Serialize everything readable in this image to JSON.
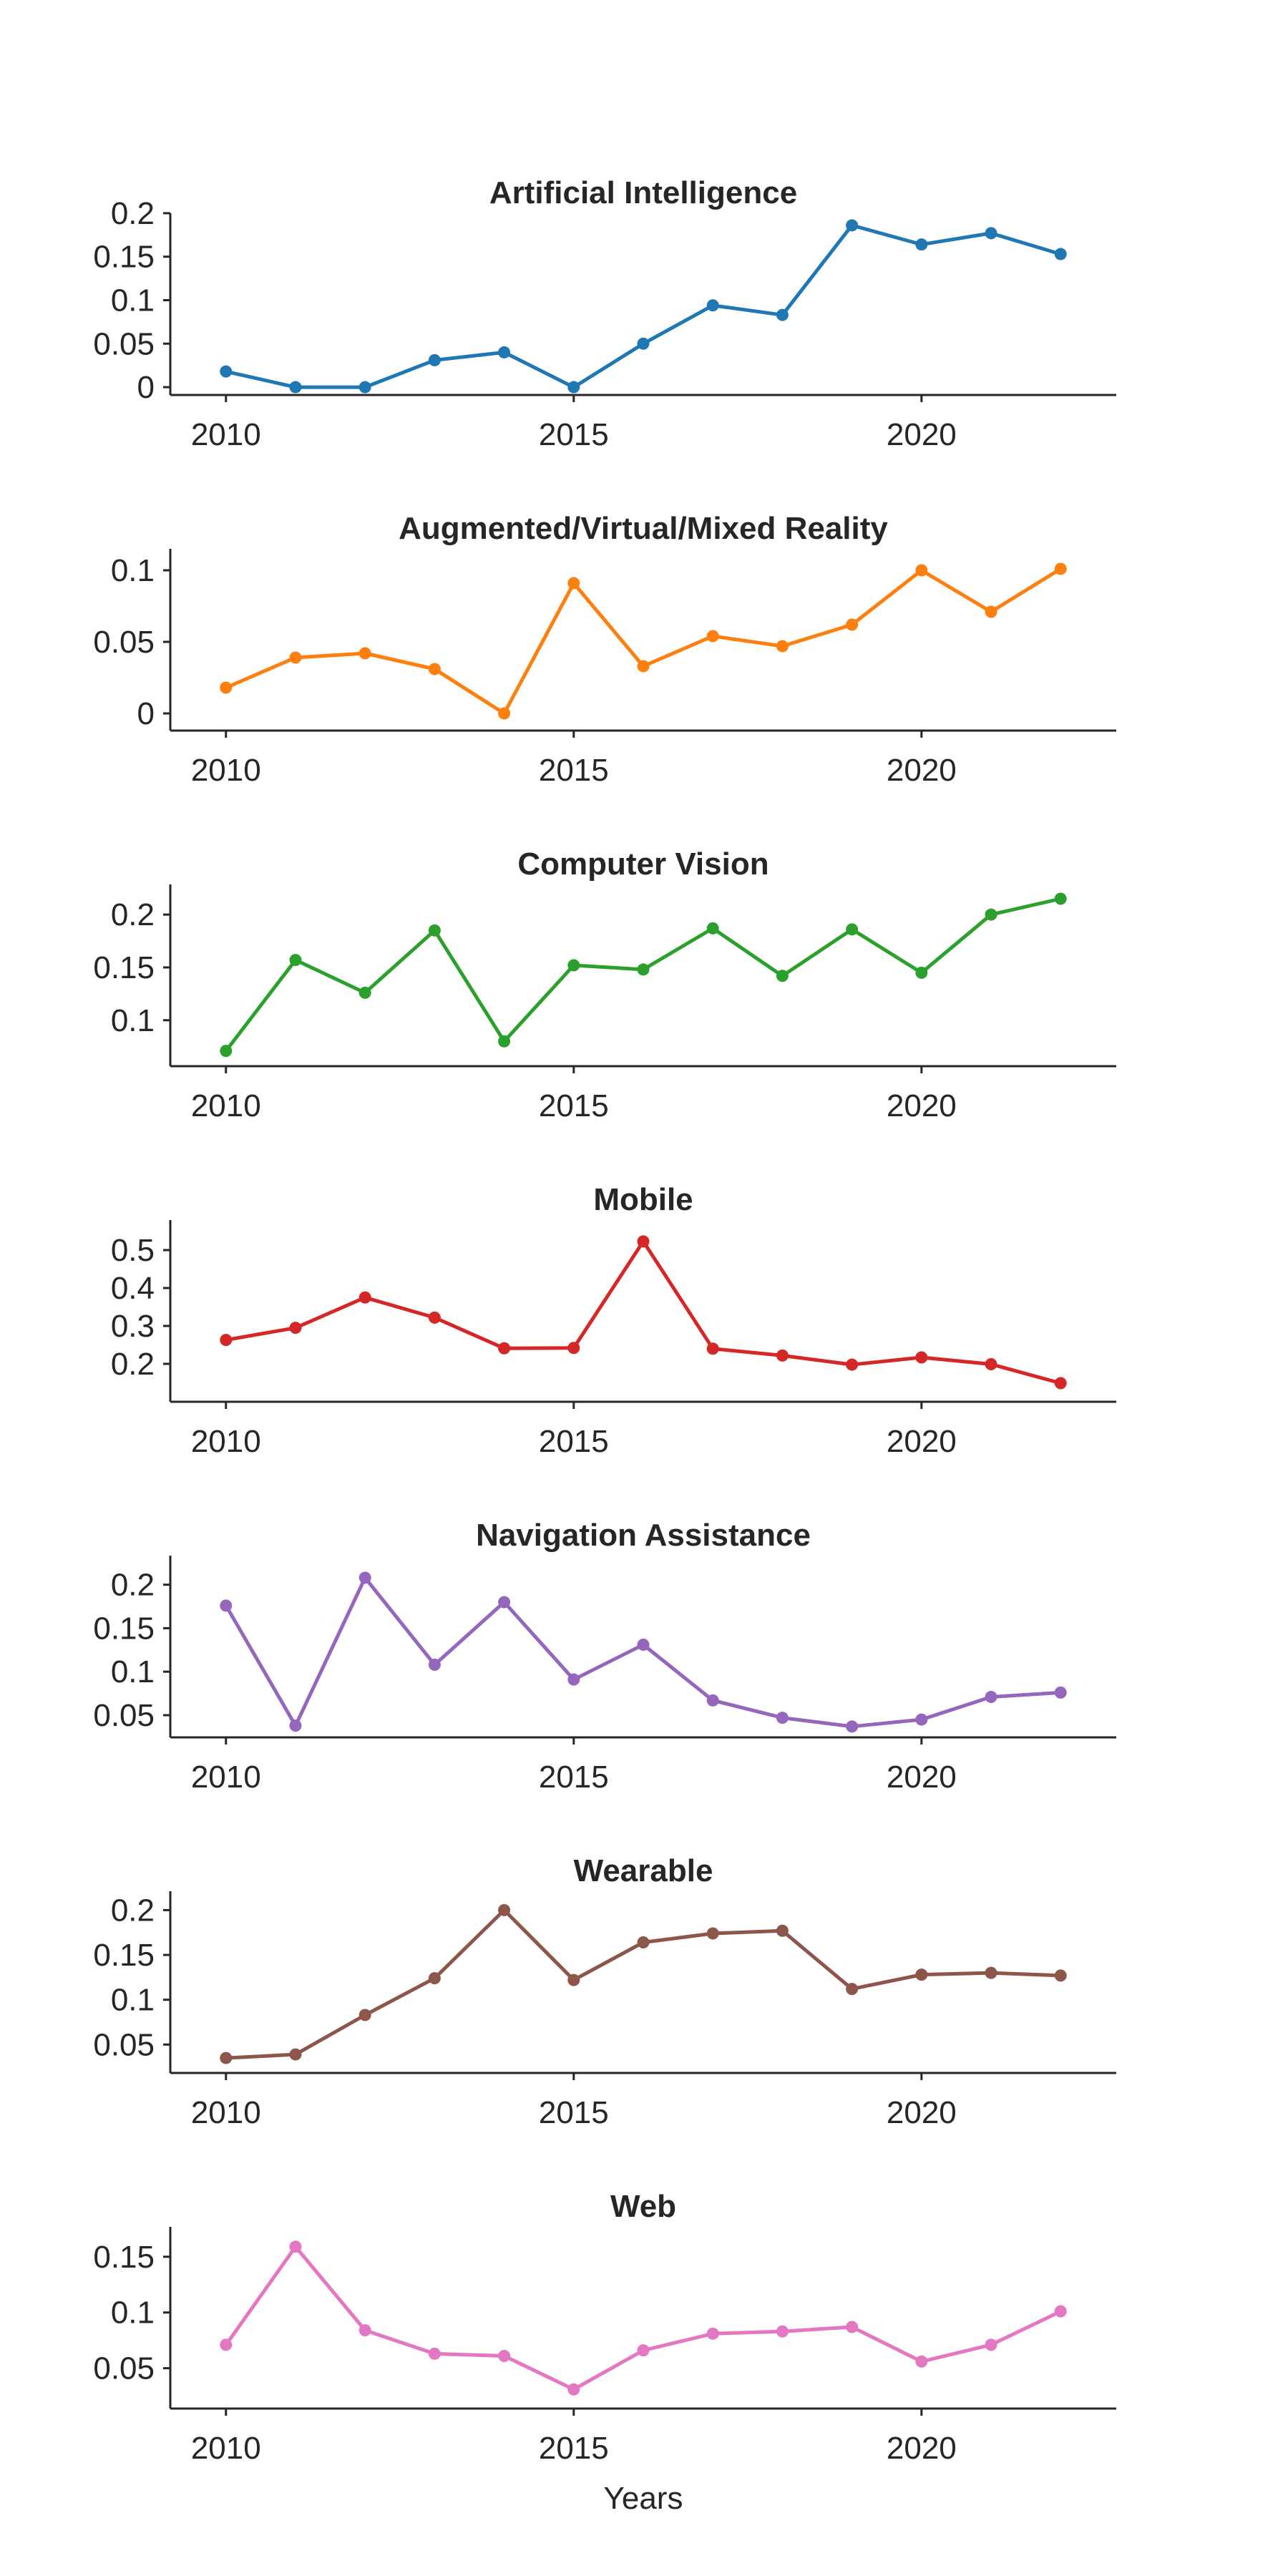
{
  "chart_data": [
    {
      "type": "line",
      "title": "Artificial Intelligence",
      "color": "#1f77b4",
      "x": [
        2010,
        2011,
        2012,
        2013,
        2014,
        2015,
        2016,
        2017,
        2018,
        2019,
        2020,
        2021,
        2022
      ],
      "values": [
        0.018,
        0.0,
        0.0,
        0.031,
        0.04,
        0.0,
        0.05,
        0.094,
        0.083,
        0.186,
        0.164,
        0.177,
        0.153
      ],
      "ylim": [
        -0.009,
        0.195
      ],
      "yticks": [
        0,
        0.05,
        0.1,
        0.15,
        0.2
      ],
      "ytick_labels": [
        "0",
        "0.05",
        "0.1",
        "0.15",
        "0.2"
      ],
      "xticks": [
        2010,
        2015,
        2020
      ],
      "xtick_labels": [
        "2010",
        "2015",
        "2020"
      ],
      "xlabel": ""
    },
    {
      "type": "line",
      "title": "Augmented/Virtual/Mixed Reality",
      "color": "#ff7f0e",
      "x": [
        2010,
        2011,
        2012,
        2013,
        2014,
        2015,
        2016,
        2017,
        2018,
        2019,
        2020,
        2021,
        2022
      ],
      "values": [
        0.018,
        0.039,
        0.042,
        0.031,
        0.0,
        0.091,
        0.033,
        0.054,
        0.047,
        0.062,
        0.1,
        0.071,
        0.101
      ],
      "ylim": [
        -0.012,
        0.112
      ],
      "yticks": [
        0,
        0.05,
        0.1
      ],
      "ytick_labels": [
        "0",
        "0.05",
        "0.1"
      ],
      "xticks": [
        2010,
        2015,
        2020
      ],
      "xtick_labels": [
        "2010",
        "2015",
        "2020"
      ],
      "xlabel": ""
    },
    {
      "type": "line",
      "title": "Computer Vision",
      "color": "#2ca02c",
      "x": [
        2010,
        2011,
        2012,
        2013,
        2014,
        2015,
        2016,
        2017,
        2018,
        2019,
        2020,
        2021,
        2022
      ],
      "values": [
        0.071,
        0.157,
        0.126,
        0.185,
        0.08,
        0.152,
        0.148,
        0.187,
        0.142,
        0.186,
        0.145,
        0.2,
        0.215
      ],
      "ylim": [
        0.0565,
        0.2245
      ],
      "yticks": [
        0.1,
        0.15,
        0.2
      ],
      "ytick_labels": [
        "0.1",
        "0.15",
        "0.2"
      ],
      "xticks": [
        2010,
        2015,
        2020
      ],
      "xtick_labels": [
        "2010",
        "2015",
        "2020"
      ],
      "xlabel": ""
    },
    {
      "type": "line",
      "title": "Mobile",
      "color": "#d62728",
      "x": [
        2010,
        2011,
        2012,
        2013,
        2014,
        2015,
        2016,
        2017,
        2018,
        2019,
        2020,
        2021,
        2022
      ],
      "values": [
        0.263,
        0.295,
        0.375,
        0.322,
        0.241,
        0.242,
        0.523,
        0.24,
        0.222,
        0.198,
        0.217,
        0.199,
        0.149
      ],
      "ylim": [
        0.1,
        0.568
      ],
      "yticks": [
        0.2,
        0.3,
        0.4,
        0.5
      ],
      "ytick_labels": [
        "0.2",
        "0.3",
        "0.4",
        "0.5"
      ],
      "xticks": [
        2010,
        2015,
        2020
      ],
      "xtick_labels": [
        "2010",
        "2015",
        "2020"
      ],
      "xlabel": ""
    },
    {
      "type": "line",
      "title": "Navigation Assistance",
      "color": "#9467bd",
      "x": [
        2010,
        2011,
        2012,
        2013,
        2014,
        2015,
        2016,
        2017,
        2018,
        2019,
        2020,
        2021,
        2022
      ],
      "values": [
        0.176,
        0.038,
        0.208,
        0.108,
        0.18,
        0.091,
        0.131,
        0.067,
        0.047,
        0.037,
        0.045,
        0.071,
        0.076
      ],
      "ylim": [
        0.0245,
        0.2285
      ],
      "yticks": [
        0.05,
        0.1,
        0.15,
        0.2
      ],
      "ytick_labels": [
        "0.05",
        "0.1",
        "0.15",
        "0.2"
      ],
      "xticks": [
        2010,
        2015,
        2020
      ],
      "xtick_labels": [
        "2010",
        "2015",
        "2020"
      ],
      "xlabel": ""
    },
    {
      "type": "line",
      "title": "Wearable",
      "color": "#8c564b",
      "x": [
        2010,
        2011,
        2012,
        2013,
        2014,
        2015,
        2016,
        2017,
        2018,
        2019,
        2020,
        2021,
        2022
      ],
      "values": [
        0.035,
        0.039,
        0.083,
        0.124,
        0.2,
        0.122,
        0.164,
        0.174,
        0.177,
        0.112,
        0.128,
        0.13,
        0.127
      ],
      "ylim": [
        0.0183,
        0.2163
      ],
      "yticks": [
        0.05,
        0.1,
        0.15,
        0.2
      ],
      "ytick_labels": [
        "0.05",
        "0.1",
        "0.15",
        "0.2"
      ],
      "xticks": [
        2010,
        2015,
        2020
      ],
      "xtick_labels": [
        "2010",
        "2015",
        "2020"
      ],
      "xlabel": ""
    },
    {
      "type": "line",
      "title": "Web",
      "color": "#e377c2",
      "x": [
        2010,
        2011,
        2012,
        2013,
        2014,
        2015,
        2016,
        2017,
        2018,
        2019,
        2020,
        2021,
        2022
      ],
      "values": [
        0.071,
        0.159,
        0.084,
        0.063,
        0.061,
        0.031,
        0.066,
        0.081,
        0.083,
        0.087,
        0.056,
        0.071,
        0.101
      ],
      "ylim": [
        0.0138,
        0.173
      ],
      "yticks": [
        0.05,
        0.1,
        0.15
      ],
      "ytick_labels": [
        "0.05",
        "0.1",
        "0.15"
      ],
      "xticks": [
        2010,
        2015,
        2020
      ],
      "xtick_labels": [
        "2010",
        "2015",
        "2020"
      ],
      "xlabel": "Years"
    }
  ]
}
